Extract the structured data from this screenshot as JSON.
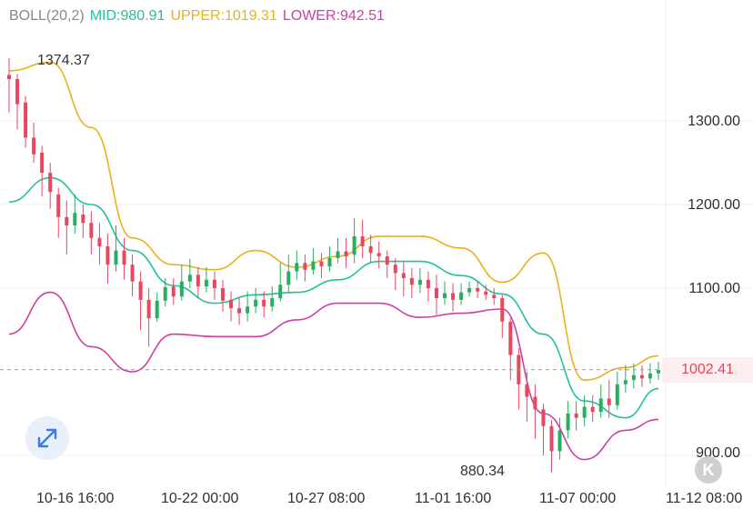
{
  "legend": {
    "name": "BOLL(20,2)",
    "mid": "MID:980.91",
    "upper": "UPPER:1019.31",
    "lower": "LOWER:942.51"
  },
  "colors": {
    "mid": "#25bfa0",
    "upper": "#e9b11d",
    "lower": "#cc3fa4",
    "up_candle": "#27ae60",
    "down_candle": "#e8475f",
    "grid": "#ececec",
    "label": "#888888"
  },
  "current_price": "1002.41",
  "annotations": {
    "high": "1374.37",
    "low": "880.34"
  },
  "controls": {
    "scroll_glyph": "K",
    "expand_icon": "expand-icon"
  },
  "chart_data": {
    "type": "candlestick",
    "title": "",
    "xlabel": "",
    "ylabel": "",
    "ylim": [
      870,
      1390
    ],
    "grid": true,
    "x_tick_labels": [
      "10-16 16:00",
      "10-22 00:00",
      "10-27 08:00",
      "11-01 16:00",
      "11-07 00:00",
      "11-12 08:00"
    ],
    "y_tick_labels": [
      "1300.00",
      "1200.00",
      "1100.00",
      "900.00"
    ],
    "y_ticks": [
      1300,
      1200,
      1100,
      900
    ],
    "current_price": 1002.41,
    "high": 1374.37,
    "low": 880.34,
    "candles": [
      [
        1355,
        1350,
        1375,
        1310
      ],
      [
        1350,
        1320,
        1356,
        1290
      ],
      [
        1322,
        1280,
        1330,
        1268
      ],
      [
        1280,
        1260,
        1298,
        1250
      ],
      [
        1262,
        1238,
        1270,
        1210
      ],
      [
        1238,
        1215,
        1250,
        1195
      ],
      [
        1212,
        1185,
        1220,
        1160
      ],
      [
        1185,
        1175,
        1205,
        1140
      ],
      [
        1175,
        1190,
        1212,
        1165
      ],
      [
        1188,
        1178,
        1200,
        1160
      ],
      [
        1178,
        1160,
        1192,
        1140
      ],
      [
        1160,
        1150,
        1178,
        1128
      ],
      [
        1150,
        1128,
        1165,
        1105
      ],
      [
        1128,
        1145,
        1175,
        1120
      ],
      [
        1145,
        1128,
        1160,
        1110
      ],
      [
        1128,
        1108,
        1140,
        1090
      ],
      [
        1108,
        1086,
        1120,
        1050
      ],
      [
        1086,
        1064,
        1100,
        1030
      ],
      [
        1064,
        1085,
        1095,
        1060
      ],
      [
        1085,
        1101,
        1112,
        1078
      ],
      [
        1102,
        1090,
        1112,
        1080
      ],
      [
        1090,
        1108,
        1128,
        1085
      ],
      [
        1108,
        1116,
        1135,
        1100
      ],
      [
        1116,
        1102,
        1125,
        1088
      ],
      [
        1102,
        1110,
        1125,
        1095
      ],
      [
        1110,
        1100,
        1120,
        1086
      ],
      [
        1100,
        1085,
        1110,
        1072
      ],
      [
        1086,
        1076,
        1096,
        1060
      ],
      [
        1076,
        1070,
        1088,
        1056
      ],
      [
        1070,
        1078,
        1096,
        1060
      ],
      [
        1078,
        1086,
        1100,
        1070
      ],
      [
        1086,
        1078,
        1096,
        1065
      ],
      [
        1078,
        1088,
        1102,
        1072
      ],
      [
        1088,
        1104,
        1130,
        1084
      ],
      [
        1104,
        1120,
        1140,
        1094
      ],
      [
        1120,
        1130,
        1145,
        1110
      ],
      [
        1130,
        1122,
        1140,
        1108
      ],
      [
        1122,
        1132,
        1148,
        1116
      ],
      [
        1132,
        1126,
        1142,
        1112
      ],
      [
        1126,
        1136,
        1150,
        1120
      ],
      [
        1136,
        1144,
        1160,
        1130
      ],
      [
        1144,
        1138,
        1160,
        1124
      ],
      [
        1140,
        1162,
        1184,
        1130
      ],
      [
        1162,
        1150,
        1182,
        1136
      ],
      [
        1150,
        1142,
        1164,
        1130
      ],
      [
        1142,
        1138,
        1156,
        1124
      ],
      [
        1138,
        1128,
        1145,
        1112
      ],
      [
        1128,
        1118,
        1136,
        1098
      ],
      [
        1118,
        1112,
        1132,
        1090
      ],
      [
        1112,
        1104,
        1124,
        1088
      ],
      [
        1104,
        1110,
        1124,
        1094
      ],
      [
        1110,
        1100,
        1120,
        1084
      ],
      [
        1100,
        1088,
        1116,
        1068
      ],
      [
        1088,
        1094,
        1108,
        1080
      ],
      [
        1094,
        1086,
        1106,
        1072
      ],
      [
        1086,
        1095,
        1106,
        1080
      ],
      [
        1095,
        1100,
        1108,
        1090
      ],
      [
        1100,
        1096,
        1108,
        1088
      ],
      [
        1096,
        1092,
        1104,
        1086
      ],
      [
        1092,
        1088,
        1100,
        1080
      ],
      [
        1088,
        1060,
        1092,
        1040
      ],
      [
        1060,
        1020,
        1064,
        990
      ],
      [
        1020,
        985,
        1028,
        955
      ],
      [
        985,
        970,
        1000,
        940
      ],
      [
        970,
        955,
        985,
        920
      ],
      [
        955,
        935,
        962,
        900
      ],
      [
        935,
        905,
        942,
        880
      ],
      [
        905,
        930,
        945,
        895
      ],
      [
        930,
        950,
        965,
        920
      ],
      [
        950,
        945,
        965,
        930
      ],
      [
        945,
        958,
        972,
        935
      ],
      [
        958,
        952,
        972,
        940
      ],
      [
        952,
        968,
        985,
        945
      ],
      [
        968,
        960,
        990,
        945
      ],
      [
        960,
        985,
        1000,
        955
      ],
      [
        985,
        990,
        1008,
        975
      ],
      [
        990,
        996,
        1010,
        980
      ],
      [
        996,
        992,
        1008,
        982
      ],
      [
        992,
        998,
        1010,
        986
      ],
      [
        998,
        1002,
        1012,
        990
      ]
    ],
    "series": [
      {
        "name": "MID",
        "x": [
          0,
          5,
          10,
          15,
          20,
          25,
          30,
          35,
          40,
          45,
          50,
          55,
          60,
          65,
          70,
          75,
          79
        ],
        "values": [
          1203,
          1232,
          1200,
          1145,
          1103,
          1082,
          1092,
          1095,
          1110,
          1132,
          1132,
          1115,
          1093,
          1045,
          965,
          945,
          980
        ]
      },
      {
        "name": "UPPER",
        "x": [
          0,
          5,
          10,
          15,
          20,
          25,
          30,
          35,
          40,
          45,
          50,
          55,
          60,
          65,
          70,
          75,
          79
        ],
        "values": [
          1360,
          1370,
          1292,
          1160,
          1128,
          1122,
          1145,
          1125,
          1138,
          1162,
          1162,
          1148,
          1107,
          1142,
          990,
          1005,
          1019
        ]
      },
      {
        "name": "LOWER",
        "x": [
          0,
          5,
          10,
          15,
          20,
          25,
          30,
          35,
          40,
          45,
          50,
          55,
          60,
          65,
          70,
          75,
          79
        ],
        "values": [
          1045,
          1095,
          1030,
          1000,
          1045,
          1042,
          1042,
          1062,
          1082,
          1082,
          1065,
          1070,
          1075,
          950,
          895,
          930,
          943
        ]
      }
    ]
  }
}
